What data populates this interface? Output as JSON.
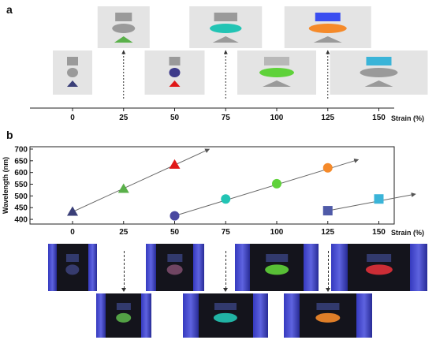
{
  "panel_a": {
    "letter": "a",
    "axis_label": "Strain (%)",
    "ticks": [
      "0",
      "25",
      "50",
      "75",
      "100",
      "125",
      "150"
    ],
    "cards": [
      {
        "strain": 0,
        "row": "bottom",
        "square": "#9a9a9a",
        "circle": "#9a9a9a",
        "triangle": "#3a3f78"
      },
      {
        "strain": 25,
        "row": "top",
        "square": "#9a9a9a",
        "circle": "#9a9a9a",
        "triangle": "#5ab04a"
      },
      {
        "strain": 50,
        "row": "bottom",
        "square": "#9a9a9a",
        "circle": "#3d3a8a",
        "triangle": "#e01818"
      },
      {
        "strain": 75,
        "row": "top",
        "square": "#9a9a9a",
        "circle": "#22c4b4",
        "triangle": "#9a9a9a"
      },
      {
        "strain": 100,
        "row": "bottom",
        "square": "#b8b8b8",
        "circle": "#5fd23a",
        "triangle": "#9a9a9a"
      },
      {
        "strain": 125,
        "row": "top",
        "square": "#3a4ef0",
        "circle": "#f58a2a",
        "triangle": "#9a9a9a"
      },
      {
        "strain": 150,
        "row": "bottom",
        "square": "#3ab4d8",
        "circle": "#9a9a9a",
        "triangle": "#9a9a9a"
      }
    ]
  },
  "panel_b": {
    "letter": "b"
  },
  "chart_data": {
    "type": "scatter",
    "xlabel": "Strain (%)",
    "ylabel": "Wavelength (nm)",
    "x_ticks": [
      "0",
      "25",
      "50",
      "75",
      "100",
      "125",
      "150"
    ],
    "y_ticks": [
      "400",
      "450",
      "500",
      "550",
      "600",
      "650",
      "700"
    ],
    "xlim": [
      -5,
      185
    ],
    "ylim": [
      380,
      710
    ],
    "grid": false,
    "series": [
      {
        "marker": "triangle",
        "points": [
          {
            "x": 0,
            "y": 432,
            "color": "#3a3f78"
          },
          {
            "x": 25,
            "y": 530,
            "color": "#5ab04a"
          },
          {
            "x": 50,
            "y": 633,
            "color": "#e01818"
          }
        ],
        "arrow_end": {
          "x": 67,
          "y": 700
        }
      },
      {
        "marker": "circle",
        "points": [
          {
            "x": 50,
            "y": 415,
            "color": "#4a48a0"
          },
          {
            "x": 75,
            "y": 487,
            "color": "#22c4b4"
          },
          {
            "x": 100,
            "y": 552,
            "color": "#5fd23a"
          },
          {
            "x": 125,
            "y": 620,
            "color": "#f58a2a"
          }
        ],
        "arrow_end": {
          "x": 140,
          "y": 655
        }
      },
      {
        "marker": "square",
        "points": [
          {
            "x": 125,
            "y": 437,
            "color": "#4f5aa8"
          },
          {
            "x": 150,
            "y": 487,
            "color": "#3ab4d8"
          }
        ],
        "arrow_end": {
          "x": 168,
          "y": 508
        }
      }
    ]
  },
  "photos": [
    {
      "strain": 0,
      "row": "top",
      "tint": "#3a3f78"
    },
    {
      "strain": 25,
      "row": "bottom",
      "tint": "#5ab04a"
    },
    {
      "strain": 50,
      "row": "top",
      "tint": "#7a4a6a"
    },
    {
      "strain": 75,
      "row": "bottom",
      "tint": "#22c4b4"
    },
    {
      "strain": 100,
      "row": "top",
      "tint": "#5fd23a"
    },
    {
      "strain": 125,
      "row": "bottom",
      "tint": "#f58a2a"
    },
    {
      "strain": 150,
      "row": "top",
      "tint": "#e0303a"
    }
  ]
}
